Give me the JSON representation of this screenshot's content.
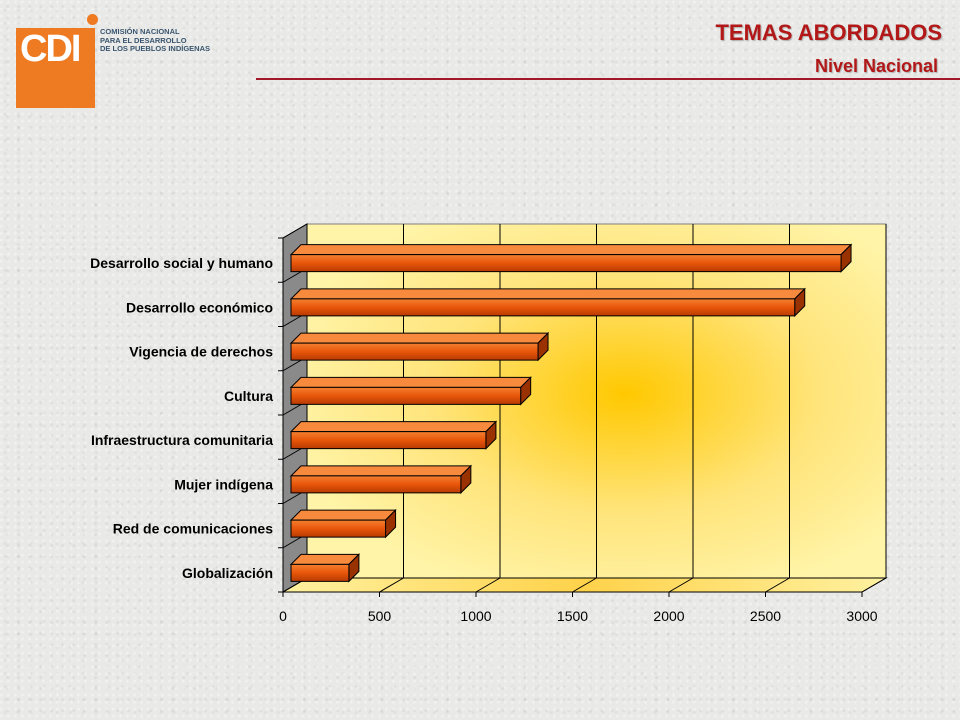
{
  "header": {
    "title": "TEMAS ABORDADOS",
    "subtitle": "Nivel Nacional"
  },
  "logo": {
    "mark": "CDI",
    "org_lines": [
      "COMISIÓN NACIONAL",
      "PARA EL DESARROLLO",
      "DE LOS PUEBLOS INDÍGENAS"
    ]
  },
  "colors": {
    "accent": "#b31818",
    "logo_orange": "#ee7a22",
    "bar": "#e8560a",
    "plot_bg": "#fff199"
  },
  "chart_data": {
    "type": "bar",
    "orientation": "horizontal",
    "categories": [
      "Desarrollo social y humano",
      "Desarrollo económico",
      "Vigencia de derechos",
      "Cultura",
      "Infraestructura comunitaria",
      "Mujer indígena",
      "Red de comunicaciones",
      "Globalización"
    ],
    "values": [
      2850,
      2610,
      1280,
      1190,
      1010,
      880,
      490,
      300
    ],
    "xlim": [
      0,
      3000
    ],
    "xticks": [
      "0",
      "500",
      "1000",
      "1500",
      "2000",
      "2500",
      "3000"
    ],
    "grid": true,
    "title": "",
    "xlabel": "",
    "ylabel": ""
  }
}
